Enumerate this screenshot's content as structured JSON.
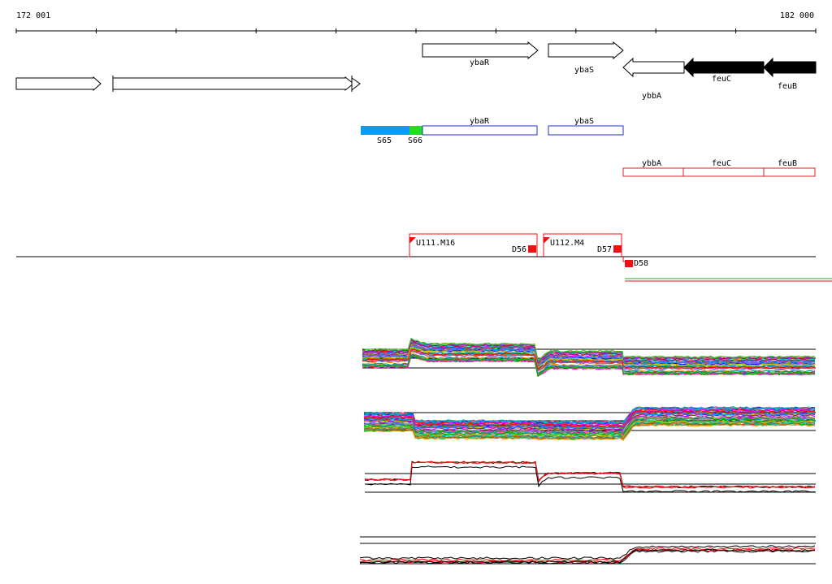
{
  "ruler": {
    "start_label": "172 001",
    "end_label": "182 000"
  },
  "genes": {
    "top": [
      {
        "id": "gene-ybaR",
        "label": "ybaR",
        "strand": "+",
        "style": "outline"
      },
      {
        "id": "gene-ybaS",
        "label": "ybaS",
        "strand": "+",
        "style": "outline"
      },
      {
        "id": "gene-left-1",
        "label": "",
        "strand": "+",
        "style": "outline"
      },
      {
        "id": "gene-left-2",
        "label": "",
        "strand": "+",
        "style": "outline"
      },
      {
        "id": "gene-left-3",
        "label": "",
        "strand": "+",
        "style": "outline"
      },
      {
        "id": "gene-ybbA",
        "label": "ybbA",
        "strand": "-",
        "style": "outline"
      },
      {
        "id": "gene-feuC",
        "label": "feuC",
        "strand": "-",
        "style": "filled"
      },
      {
        "id": "gene-feuB",
        "label": "feuB",
        "strand": "-",
        "style": "filled"
      }
    ]
  },
  "segments": {
    "plus": [
      {
        "label": "S65",
        "color": "#0a9cf5"
      },
      {
        "label": "S66",
        "color": "#22dd22"
      },
      {
        "label": "ybaR",
        "color": "#2233cc"
      },
      {
        "label": "ybaS",
        "color": "#2233cc"
      }
    ],
    "minus": [
      {
        "label": "ybbA",
        "color": "#dd2222"
      },
      {
        "label": "feuC",
        "color": "#dd2222"
      },
      {
        "label": "feuB",
        "color": "#dd2222"
      }
    ]
  },
  "transcription_units": [
    {
      "label": "U111.M16",
      "terminator": "D56"
    },
    {
      "label": "U112.M4",
      "terminator": "D57"
    },
    {
      "label": "",
      "terminator": "D58"
    }
  ],
  "colors": {
    "axis": "#000000",
    "plus_strand": "#2233cc",
    "minus_strand": "#dd2222",
    "tu": "#ee1111"
  }
}
